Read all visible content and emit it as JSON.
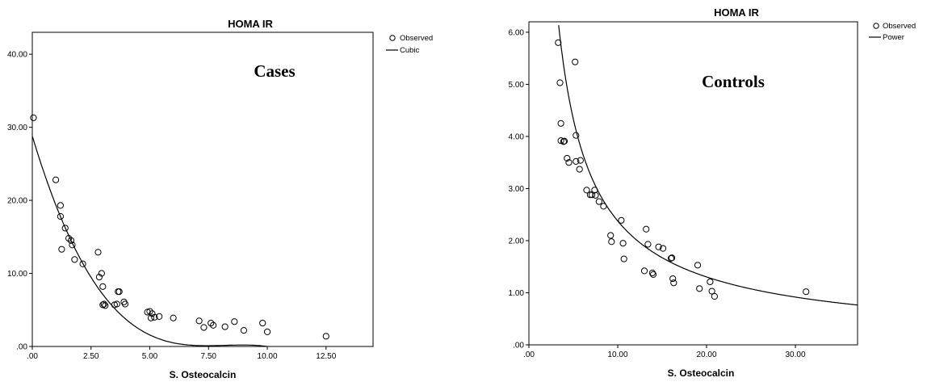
{
  "chart_data": [
    {
      "type": "scatter",
      "title": "HOMA IR",
      "xlabel": "S. Osteocalcin",
      "ylabel": "",
      "annotation": "Cases",
      "xlim": [
        0,
        14.5
      ],
      "ylim": [
        0,
        43
      ],
      "x_ticks": [
        0,
        2.5,
        5,
        7.5,
        10,
        12.5
      ],
      "x_tick_labels": [
        ".00",
        "2.50",
        "5.00",
        "7.50",
        "10.00",
        "12.50"
      ],
      "y_ticks": [
        0,
        10,
        20,
        30,
        40
      ],
      "y_tick_labels": [
        ".00",
        "10.00",
        "20.00",
        "30.00",
        "40.00"
      ],
      "grid": false,
      "legend_position": "top-right (outside)",
      "legend": [
        {
          "name": "Observed",
          "symbol": "circle"
        },
        {
          "name": "Cubic",
          "symbol": "line"
        }
      ],
      "series": [
        {
          "name": "Observed",
          "x": [
            0.05,
            1.0,
            1.2,
            1.2,
            1.25,
            1.4,
            1.55,
            1.65,
            1.7,
            1.8,
            2.15,
            2.8,
            2.85,
            2.95,
            3.0,
            3.0,
            3.05,
            3.1,
            3.5,
            3.6,
            3.65,
            3.7,
            3.9,
            3.95,
            4.9,
            5.0,
            5.05,
            5.1,
            5.2,
            5.4,
            6.0,
            7.1,
            7.3,
            7.6,
            7.7,
            8.2,
            8.6,
            9.0,
            9.8,
            10.0,
            12.5
          ],
          "y": [
            31.3,
            22.8,
            19.3,
            17.8,
            13.3,
            16.2,
            14.8,
            14.5,
            13.9,
            11.9,
            11.3,
            12.9,
            9.5,
            10.0,
            8.2,
            5.7,
            5.8,
            5.6,
            5.7,
            5.8,
            7.5,
            7.5,
            6.1,
            5.8,
            4.7,
            4.8,
            3.9,
            4.5,
            4.0,
            4.1,
            3.9,
            3.5,
            2.6,
            3.2,
            2.9,
            2.7,
            3.4,
            2.2,
            3.2,
            2.0,
            1.4
          ]
        },
        {
          "name": "Cubic",
          "fit": "cubic",
          "coefficients": [
            28.8,
            -10.7,
            1.32,
            -0.0538
          ]
        }
      ]
    },
    {
      "type": "scatter",
      "title": "HOMA IR",
      "xlabel": "S. Osteocalcin",
      "ylabel": "",
      "annotation": "Controls",
      "xlim": [
        0,
        37
      ],
      "ylim": [
        0,
        6.2
      ],
      "x_ticks": [
        0,
        10,
        20,
        30
      ],
      "x_tick_labels": [
        ".00",
        "10.00",
        "20.00",
        "30.00"
      ],
      "y_ticks": [
        0,
        1,
        2,
        3,
        4,
        5,
        6
      ],
      "y_tick_labels": [
        ".00",
        "1.00",
        "2.00",
        "3.00",
        "4.00",
        "5.00",
        "6.00"
      ],
      "grid": false,
      "legend_position": "top-right (outside)",
      "legend": [
        {
          "name": "Observed",
          "symbol": "circle"
        },
        {
          "name": "Power",
          "symbol": "line"
        }
      ],
      "series": [
        {
          "name": "Observed",
          "x": [
            3.3,
            3.5,
            3.6,
            3.6,
            3.9,
            4.0,
            4.3,
            4.5,
            5.2,
            5.3,
            5.3,
            5.7,
            5.8,
            6.5,
            6.9,
            7.1,
            7.4,
            7.5,
            7.9,
            8.4,
            9.2,
            9.3,
            10.4,
            10.6,
            10.7,
            13.0,
            13.2,
            13.4,
            13.9,
            14.0,
            14.6,
            15.1,
            16.0,
            16.1,
            16.2,
            16.3,
            19.0,
            19.2,
            20.4,
            20.6,
            20.9,
            31.2
          ],
          "y": [
            5.8,
            5.03,
            4.25,
            3.92,
            3.9,
            3.91,
            3.58,
            3.5,
            5.43,
            4.02,
            3.52,
            3.37,
            3.54,
            2.97,
            2.88,
            2.88,
            2.97,
            2.87,
            2.75,
            2.66,
            2.1,
            1.98,
            2.39,
            1.95,
            1.65,
            1.42,
            2.22,
            1.93,
            1.38,
            1.35,
            1.88,
            1.85,
            1.66,
            1.67,
            1.27,
            1.19,
            1.53,
            1.08,
            1.21,
            1.03,
            0.93,
            1.02
          ]
        },
        {
          "name": "Power",
          "fit": "power",
          "a": 17.5,
          "b": -0.867
        }
      ]
    }
  ]
}
